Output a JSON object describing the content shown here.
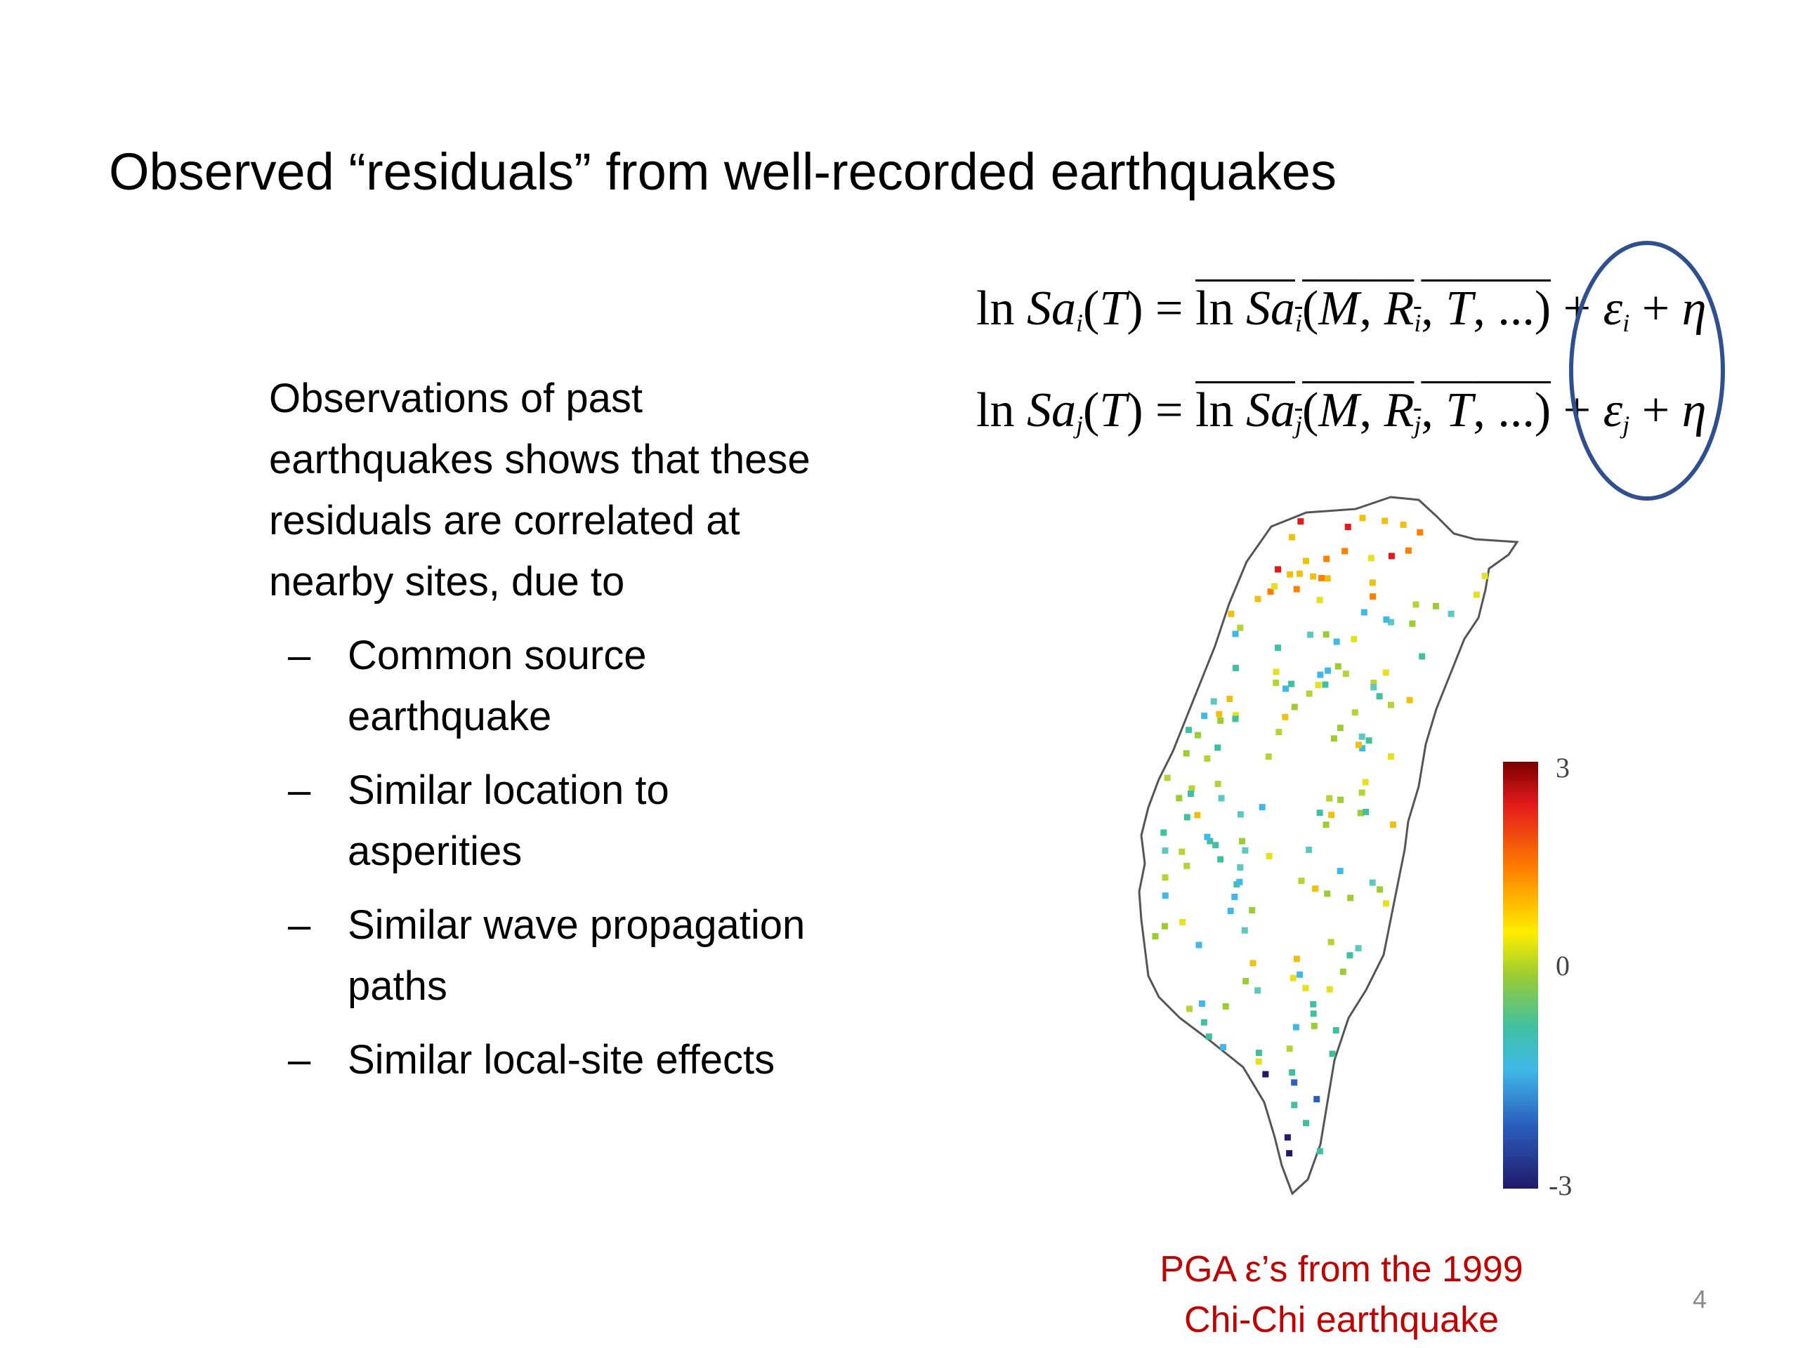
{
  "title": "Observed “residuals” from well-recorded earthquakes",
  "body_lines": [
    "Observations of past",
    "earthquakes shows that these",
    "residuals are correlated at",
    "nearby sites, due to"
  ],
  "bullet_dash": "–",
  "bullets": [
    {
      "line1": "Common source",
      "line2": "earthquake"
    },
    {
      "line1": "Similar location to",
      "line2": "asperities"
    },
    {
      "line1": "Similar wave propagation",
      "line2": "paths"
    },
    {
      "line1": "Similar local-site effects",
      "line2": ""
    }
  ],
  "equations": {
    "eq_i": "ln Sa_i(T) = ln Sa_i(M, R_i, T, ...) + ε_i + η",
    "eq_j": "ln Sa_j(T) = ln Sa_j(M, R_j, T, ...) + ε_j + η"
  },
  "colorbar": {
    "max_label": "3",
    "mid_label": "0",
    "min_label": "-3"
  },
  "caption_lines": [
    "PGA ε’s from the 1999",
    "Chi-Chi earthquake"
  ],
  "page_number": "4",
  "colors": {
    "caption": "#c00000",
    "circle": "#2f4f8f"
  }
}
